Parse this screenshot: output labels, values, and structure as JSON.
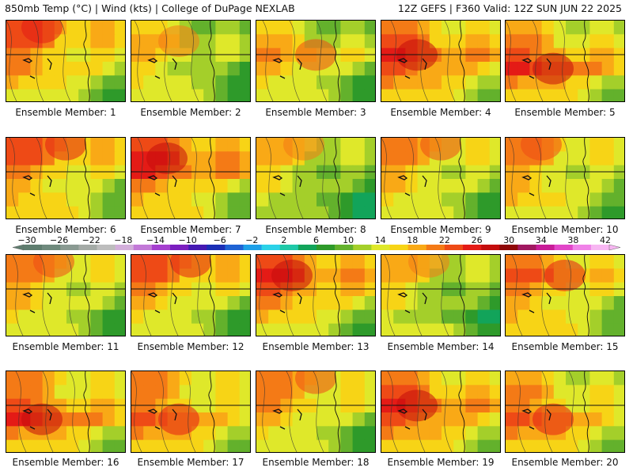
{
  "header": {
    "left": "850mb Temp (°C) | Wind (kts) | College of DuPage NEXLAB",
    "right": "12Z GEFS | F360 Valid: 12Z SUN JUN 22 2025"
  },
  "colorbar": {
    "labels": [
      "−30",
      "−26",
      "−22",
      "−18",
      "−14",
      "−10",
      "−6",
      "−2",
      "2",
      "6",
      "10",
      "14",
      "18",
      "22",
      "26",
      "30",
      "34",
      "38",
      "42"
    ],
    "colors": [
      "#5f7d6f",
      "#6f8a7d",
      "#8a9a92",
      "#a4aaa6",
      "#bdbdbd",
      "#d2aeda",
      "#c279d7",
      "#a53fcf",
      "#7b1fbf",
      "#4519b2",
      "#1b2fb6",
      "#1f63d4",
      "#1ea0e8",
      "#2bd2e8",
      "#1fc9a8",
      "#12a45a",
      "#2e9a2a",
      "#63b12c",
      "#a4cf2a",
      "#dfe82a",
      "#f7d416",
      "#f9a916",
      "#f47a16",
      "#ee4a16",
      "#e41b16",
      "#c40d0d",
      "#8f0808",
      "#a01860",
      "#c81c97",
      "#e246c8",
      "#f082e8",
      "#f7b6f2"
    ]
  },
  "panels": [
    {
      "label": "Ensemble Member: 1",
      "warmth": [
        2,
        2,
        1,
        1,
        0,
        -1
      ]
    },
    {
      "label": "Ensemble Member: 2",
      "warmth": [
        -1,
        0,
        0,
        -1,
        -1,
        -1
      ]
    },
    {
      "label": "Ensemble Member: 3",
      "warmth": [
        -1,
        0,
        1,
        0,
        -1,
        -1
      ]
    },
    {
      "label": "Ensemble Member: 4",
      "warmth": [
        1,
        2,
        3,
        2,
        1,
        0
      ]
    },
    {
      "label": "Ensemble Member: 5",
      "warmth": [
        0,
        1,
        2,
        3,
        1,
        0
      ]
    },
    {
      "label": "Ensemble Member: 6",
      "warmth": [
        2,
        2,
        1,
        0,
        0,
        0
      ]
    },
    {
      "label": "Ensemble Member: 7",
      "warmth": [
        2,
        3,
        3,
        1,
        0,
        0
      ]
    },
    {
      "label": "Ensemble Member: 8",
      "warmth": [
        0,
        0,
        -1,
        -1,
        -2,
        -2
      ]
    },
    {
      "label": "Ensemble Member: 9",
      "warmth": [
        1,
        1,
        0,
        0,
        -1,
        -1
      ]
    },
    {
      "label": "Ensemble Member: 10",
      "warmth": [
        1,
        1,
        0,
        0,
        0,
        -1
      ]
    },
    {
      "label": "Ensemble Member: 11",
      "warmth": [
        1,
        1,
        0,
        0,
        -1,
        -1
      ]
    },
    {
      "label": "Ensemble Member: 12",
      "warmth": [
        2,
        2,
        1,
        0,
        -1,
        -1
      ]
    },
    {
      "label": "Ensemble Member: 13",
      "warmth": [
        2,
        3,
        2,
        1,
        0,
        -1
      ]
    },
    {
      "label": "Ensemble Member: 14",
      "warmth": [
        0,
        0,
        -1,
        -1,
        -2,
        -1
      ]
    },
    {
      "label": "Ensemble Member: 15",
      "warmth": [
        1,
        2,
        1,
        0,
        0,
        0
      ]
    },
    {
      "label": "Ensemble Member: 16",
      "warmth": [
        1,
        1,
        2,
        3,
        1,
        0
      ]
    },
    {
      "label": "Ensemble Member: 17",
      "warmth": [
        1,
        1,
        1,
        2,
        1,
        0
      ]
    },
    {
      "label": "Ensemble Member: 18",
      "warmth": [
        1,
        1,
        1,
        0,
        -1,
        -1
      ]
    },
    {
      "label": "Ensemble Member: 19",
      "warmth": [
        1,
        2,
        3,
        2,
        1,
        0
      ]
    },
    {
      "label": "Ensemble Member: 20",
      "warmth": [
        0,
        1,
        1,
        2,
        1,
        0
      ]
    }
  ]
}
